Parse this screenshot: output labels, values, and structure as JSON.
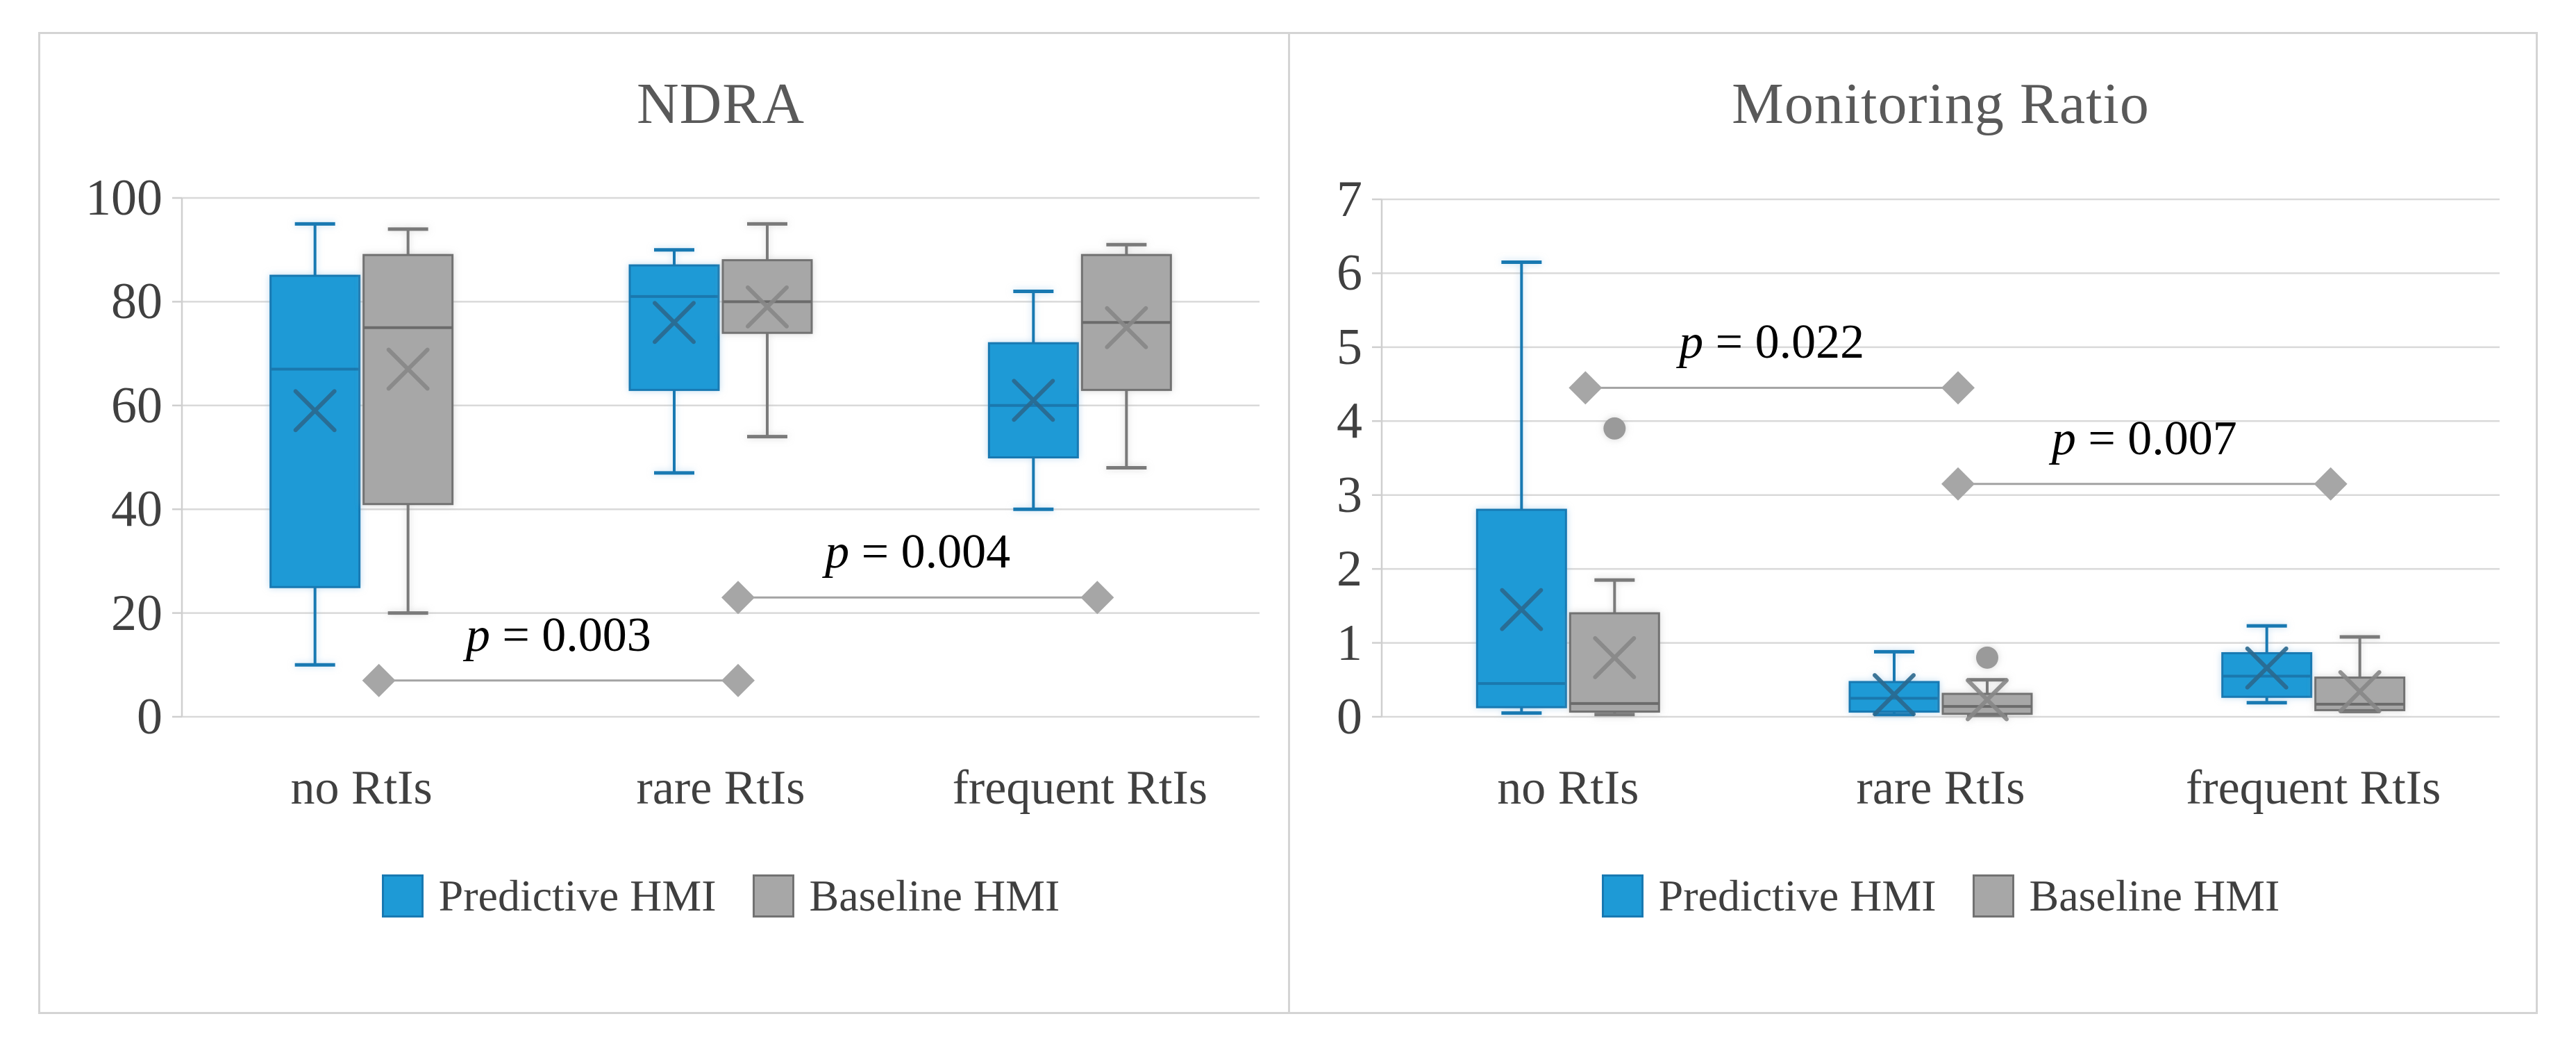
{
  "figure": {
    "background": "#FFFFFF",
    "border_color": "#D4D4D4",
    "style": {
      "gridline_color": "#D9D9D9",
      "axis_color": "#CFCFCF",
      "tick_label_color": "#404040",
      "title_color": "#595959",
      "sig_line_color": "#A3A3A3",
      "sig_diamond_color": "#A6A6A6",
      "outlier_color": "#9A9A9A",
      "p_label_color": "#000000"
    }
  },
  "chart_data": [
    {
      "type": "boxplot",
      "title": "NDRA",
      "categories": [
        "no RtIs",
        "rare RtIs",
        "frequent RtIs"
      ],
      "ylim": [
        0,
        100
      ],
      "yticks": [
        0,
        20,
        40,
        60,
        80,
        100
      ],
      "grid": true,
      "legend_position": "bottom",
      "series": [
        {
          "name": "Predictive HMI",
          "color": "#1E9AD6",
          "border_color": "#1879B2",
          "median_color": "#1A78AE",
          "whisker_color": "#1879B2",
          "mean_color": "#2A688E",
          "boxes": [
            {
              "min": 10,
              "q1": 25,
              "median": 67,
              "q3": 85,
              "max": 95,
              "mean": 59,
              "outliers": []
            },
            {
              "min": 47,
              "q1": 63,
              "median": 81,
              "q3": 87,
              "max": 90,
              "mean": 76,
              "outliers": []
            },
            {
              "min": 40,
              "q1": 50,
              "median": 60,
              "q3": 72,
              "max": 82,
              "mean": 61,
              "outliers": []
            }
          ]
        },
        {
          "name": "Baseline HMI",
          "color": "#A7A7A7",
          "border_color": "#727272",
          "median_color": "#6B6B6B",
          "whisker_color": "#7A7A7A",
          "mean_color": "#878787",
          "boxes": [
            {
              "min": 20,
              "q1": 41,
              "median": 75,
              "q3": 89,
              "max": 94,
              "mean": 67,
              "outliers": []
            },
            {
              "min": 54,
              "q1": 74,
              "median": 80,
              "q3": 88,
              "max": 95,
              "mean": 79,
              "outliers": []
            },
            {
              "min": 48,
              "q1": 63,
              "median": 76,
              "q3": 89,
              "max": 91,
              "mean": 75,
              "outliers": []
            }
          ]
        }
      ],
      "significance": [
        {
          "label": "p = 0.003",
          "from_category": 0,
          "to_category": 1,
          "y": 7
        },
        {
          "label": "p = 0.004",
          "from_category": 1,
          "to_category": 2,
          "y": 23
        }
      ]
    },
    {
      "type": "boxplot",
      "title": "Monitoring Ratio",
      "categories": [
        "no RtIs",
        "rare RtIs",
        "frequent RtIs"
      ],
      "ylim": [
        0,
        7
      ],
      "yticks": [
        0,
        1,
        2,
        3,
        4,
        5,
        6,
        7
      ],
      "grid": true,
      "legend_position": "bottom",
      "series": [
        {
          "name": "Predictive HMI",
          "color": "#1E9AD6",
          "border_color": "#1879B2",
          "median_color": "#1A78AE",
          "whisker_color": "#1879B2",
          "mean_color": "#2A688E",
          "boxes": [
            {
              "min": 0.05,
              "q1": 0.13,
              "median": 0.45,
              "q3": 2.8,
              "max": 6.15,
              "mean": 1.45,
              "outliers": []
            },
            {
              "min": 0.03,
              "q1": 0.07,
              "median": 0.25,
              "q3": 0.47,
              "max": 0.88,
              "mean": 0.3,
              "outliers": []
            },
            {
              "min": 0.19,
              "q1": 0.27,
              "median": 0.55,
              "q3": 0.86,
              "max": 1.23,
              "mean": 0.66,
              "outliers": []
            }
          ]
        },
        {
          "name": "Baseline HMI",
          "color": "#A7A7A7",
          "border_color": "#727272",
          "median_color": "#6B6B6B",
          "whisker_color": "#7A7A7A",
          "mean_color": "#878787",
          "boxes": [
            {
              "min": 0.03,
              "q1": 0.07,
              "median": 0.18,
              "q3": 1.4,
              "max": 1.85,
              "mean": 0.8,
              "outliers": [
                3.9
              ]
            },
            {
              "min": 0.02,
              "q1": 0.04,
              "median": 0.14,
              "q3": 0.31,
              "max": 0.5,
              "mean": 0.23,
              "outliers": [
                0.8
              ]
            },
            {
              "min": 0.07,
              "q1": 0.09,
              "median": 0.17,
              "q3": 0.53,
              "max": 1.08,
              "mean": 0.34,
              "outliers": []
            }
          ]
        }
      ],
      "significance": [
        {
          "label": "p = 0.022",
          "from_category": 0,
          "to_category": 1,
          "y": 4.45
        },
        {
          "label": "p = 0.007",
          "from_category": 1,
          "to_category": 2,
          "y": 3.15
        }
      ]
    }
  ]
}
